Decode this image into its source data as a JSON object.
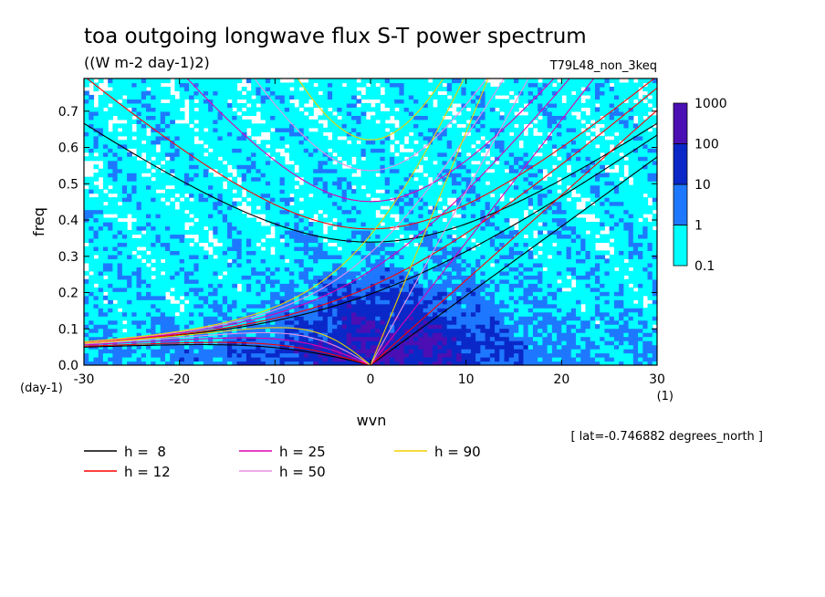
{
  "chart_data": {
    "type": "heatmap",
    "title": "toa outgoing longwave flux S-T power spectrum",
    "units": "((W m-2 day-1)2)",
    "experiment": "T79L48_non_3keq",
    "xlabel": "wvn",
    "ylabel": "freq",
    "x_units": "(1)",
    "y_units": "(day-1)",
    "xlim": [
      -30,
      30
    ],
    "ylim": [
      0,
      0.79
    ],
    "x_ticks": [
      -30,
      -20,
      -10,
      0,
      10,
      20,
      30
    ],
    "x_tick_labels": [
      "-30",
      "-20",
      "-10",
      "0",
      "10",
      "20",
      "30"
    ],
    "y_ticks": [
      0.0,
      0.1,
      0.2,
      0.3,
      0.4,
      0.5,
      0.6,
      0.7
    ],
    "y_tick_labels": [
      "0.0",
      "0.1",
      "0.2",
      "0.3",
      "0.4",
      "0.5",
      "0.6",
      "0.7"
    ],
    "colorbar": {
      "levels": [
        0.1,
        1,
        10,
        100,
        1000
      ],
      "labels": [
        "0.1",
        "1",
        "10",
        "100",
        "1000"
      ],
      "colors": [
        "#00ffff",
        "#1e78ff",
        "#0a28c8",
        "#4b0fb4"
      ]
    },
    "note": "[ lat=-0.746882 degrees_north ]",
    "dispersion_curves": [
      {
        "h": 8,
        "label": "h =  8",
        "color": "#000000"
      },
      {
        "h": 12,
        "label": "h = 12",
        "color": "#ff0000"
      },
      {
        "h": 25,
        "label": "h = 25",
        "color": "#e000b0"
      },
      {
        "h": 50,
        "label": "h = 50",
        "color": "#e890e0"
      },
      {
        "h": 90,
        "label": "h = 90",
        "color": "#f0d000"
      }
    ]
  }
}
